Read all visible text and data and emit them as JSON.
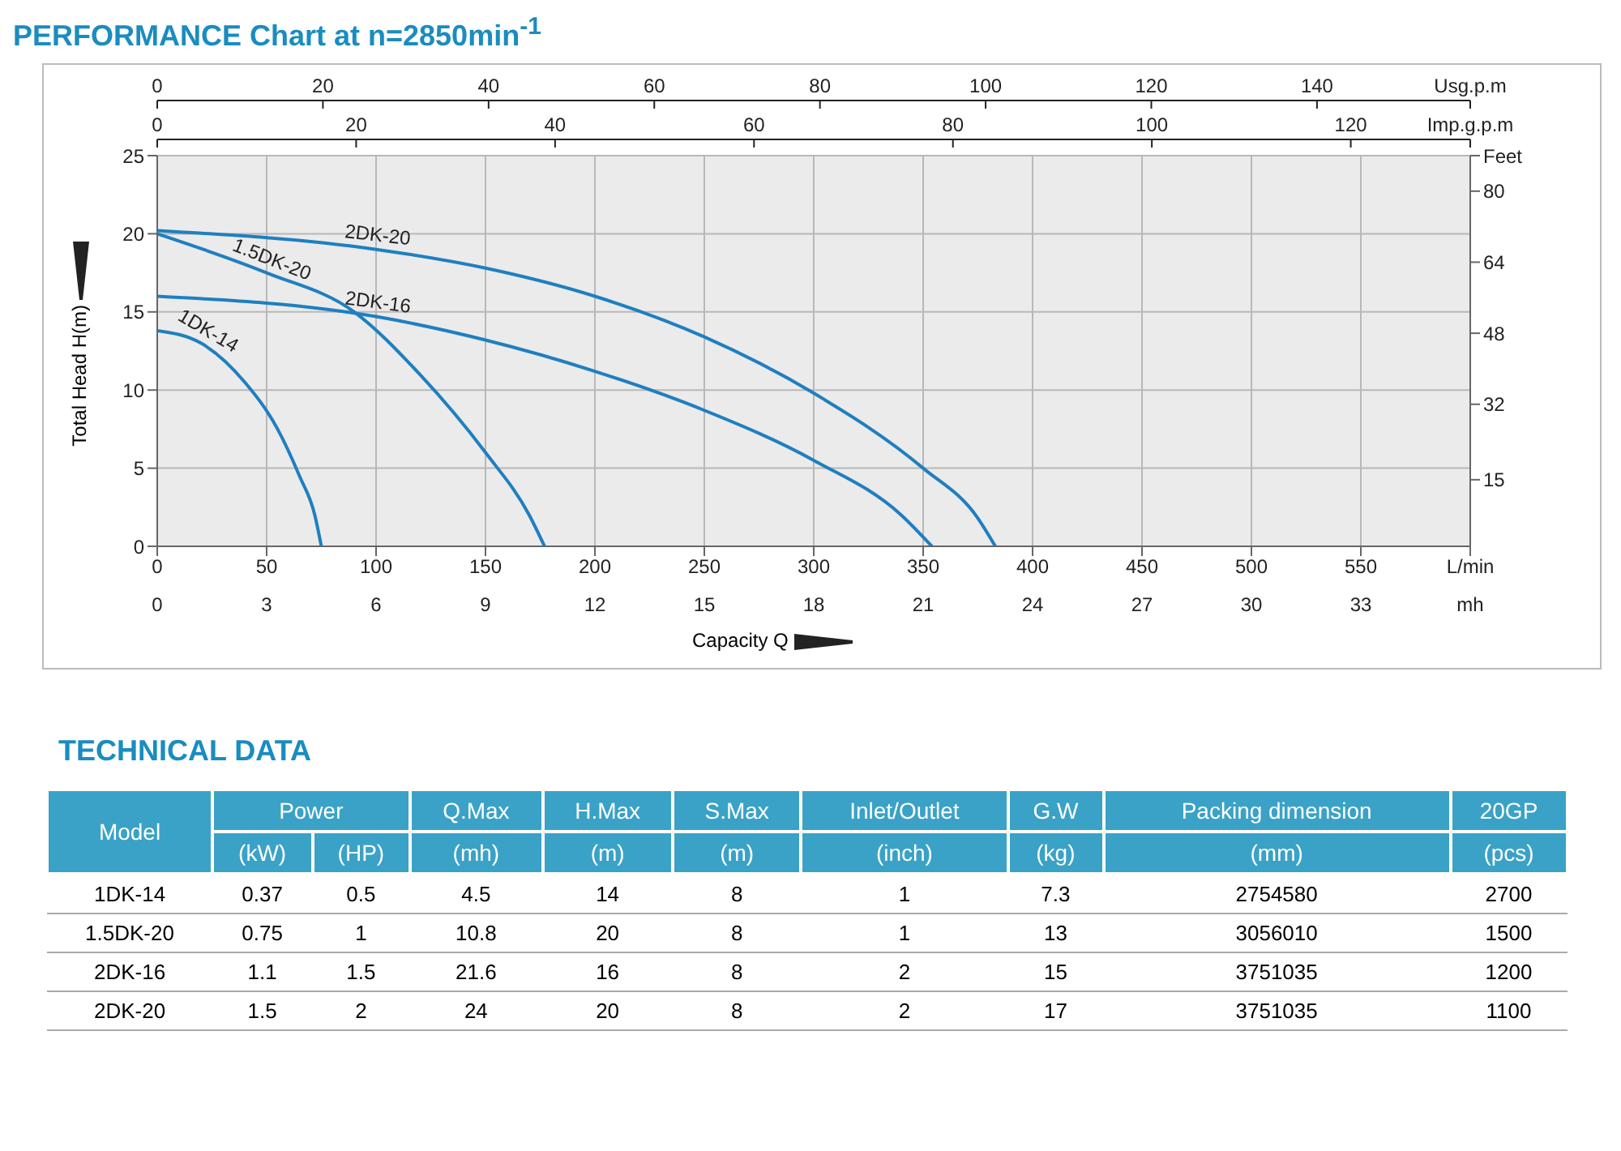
{
  "chart_data": [
    {
      "type": "line",
      "title": "PERFORMANCE Chart at n=2850min$^{-1}$",
      "xlabel": "Capacity Q",
      "ylabel": "Total Head H(m)",
      "xlim": [
        0,
        600
      ],
      "xticks": [
        0,
        50,
        100,
        150,
        200,
        250,
        300,
        350,
        400,
        450,
        500,
        550,
        {
          "value": 600,
          "label": "L/min"
        }
      ],
      "x2lim": [
        0,
        158.5
      ],
      "x2ticks": [
        0,
        20,
        40,
        60,
        80,
        100,
        120,
        140,
        {
          "value": 158.5,
          "label": "Usg.p.m"
        }
      ],
      "ylim": [
        0,
        25
      ],
      "yticks": [
        0,
        5,
        10,
        15,
        20,
        25
      ],
      "y2lim": [
        0,
        88
      ],
      "y2ticks": [
        15,
        32,
        48,
        64,
        80,
        {
          "value": 88,
          "label": "Feet"
        }
      ],
      "grid": true,
      "legend": false,
      "marker": "none",
      "line_style": "solid",
      "annotations": [
        "0",
        "3",
        "6",
        "9",
        "12",
        "15",
        "18",
        "21",
        "24",
        "27",
        "30",
        "33",
        "mh",
        "0",
        "20",
        "40",
        "60",
        "80",
        "100",
        "120",
        "Imp.g.p.m"
      ],
      "series": [
        {
          "name": "1DK-14",
          "color": "#1f7fc0",
          "x": [
            0,
            20,
            40,
            55,
            65,
            72,
            75
          ],
          "values": [
            13.8,
            13,
            10.5,
            7.5,
            4.5,
            2,
            0
          ]
        },
        {
          "name": "1.5DK-20",
          "color": "#1f7fc0",
          "x": [
            0,
            50,
            90,
            120,
            150,
            170,
            177
          ],
          "values": [
            20,
            17.5,
            15,
            11,
            6,
            2,
            0
          ]
        },
        {
          "name": "2DK-16",
          "color": "#1f7fc0",
          "x": [
            0,
            100,
            150,
            200,
            250,
            300,
            340,
            354
          ],
          "values": [
            16,
            14.7,
            13.2,
            11.2,
            8.7,
            5.5,
            2,
            0
          ]
        },
        {
          "name": "2DK-20",
          "color": "#1f7fc0",
          "x": [
            0,
            100,
            150,
            200,
            250,
            300,
            350,
            375,
            383
          ],
          "values": [
            20.2,
            19,
            17.8,
            16,
            13.4,
            9.8,
            5,
            1.8,
            0
          ]
        }
      ]
    },
    {
      "type": "other",
      "title": "TECHNICAL DATA",
      "annotations": [
        "Model",
        "Power",
        "Q.Max",
        "H.Max",
        "S.Max",
        "Inlet/Outlet",
        "G.W",
        "Packing dimension",
        "20GP",
        "(kW)",
        "(HP)",
        "(mh)",
        "(m)",
        "(m)",
        "(inch)",
        "(kg)",
        "(mm)",
        "(pcs)",
        "1DK-14",
        "0.37",
        "0.5",
        "4.5",
        "14",
        "8",
        "1",
        "7.3",
        "2754580",
        "2700",
        "1.5DK-20",
        "0.75",
        "1",
        "10.8",
        "20",
        "8",
        "1",
        "13",
        "3056010",
        "1500",
        "2DK-16",
        "1.1",
        "1.5",
        "21.6",
        "16",
        "8",
        "2",
        "15",
        "3751035",
        "1200",
        "2DK-20",
        "1.5",
        "2",
        "24",
        "20",
        "8",
        "2",
        "17",
        "3751035",
        "1100"
      ]
    }
  ]
}
